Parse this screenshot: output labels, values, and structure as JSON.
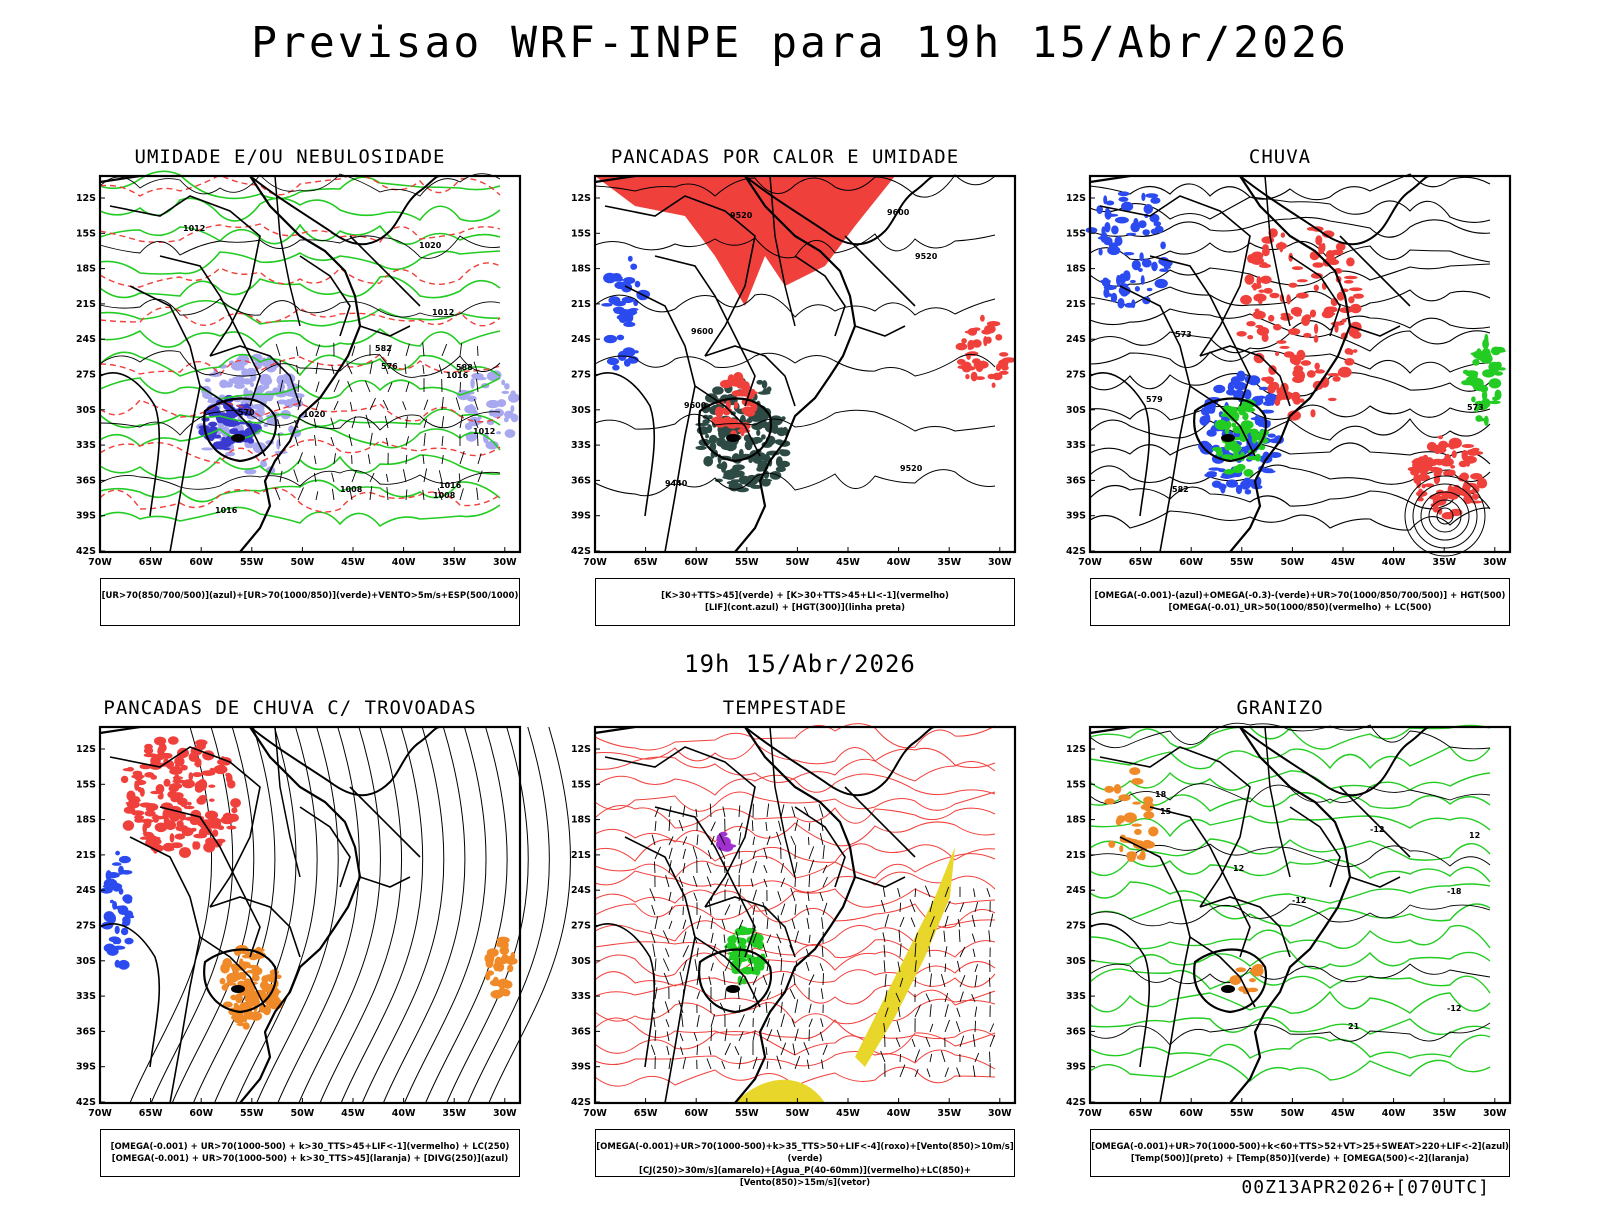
{
  "title": "Previsao WRF-INPE  para 19h 15/Abr/2026",
  "middle_time": "19h 15/Abr/2026",
  "footer": "00Z13APR2026+[070UTC]",
  "axes": {
    "lat_labels": [
      "12S",
      "15S",
      "18S",
      "21S",
      "24S",
      "27S",
      "30S",
      "33S",
      "36S",
      "39S",
      "42S"
    ],
    "lon_labels": [
      "70W",
      "65W",
      "60W",
      "55W",
      "50W",
      "45W",
      "40W",
      "35W",
      "30W"
    ]
  },
  "colors": {
    "red": "#f0403c",
    "green": "#22cc22",
    "blue": "#2b4af0",
    "lightblue": "#a8a8f0",
    "darkblue": "#3a3ad0",
    "darkgreen": "#2d4a44",
    "orange": "#f08a28",
    "yellow": "#e8d62a",
    "purple": "#a030d0"
  },
  "panels": [
    {
      "id": "umidade",
      "title": "UMIDADE E/OU NEBULOSIDADE",
      "legend": [
        "[UR>70(850/700/500)](azul)+[UR>70(1000/850)](verde)+VENTO>5m/s+ESP(500/1000)"
      ],
      "contour_labels": [
        "1008",
        "1008",
        "1012",
        "1012",
        "1016",
        "1016",
        "1020",
        "1020",
        "1012",
        "1016",
        "576",
        "570",
        "582",
        "588"
      ]
    },
    {
      "id": "pancadas_calor",
      "title": "PANCADAS POR CALOR E UMIDADE",
      "legend": [
        "[K>30+TTS>45](verde) + [K>30+TTS>45+LI<-1](vermelho)",
        "[LIF](cont.azul) + [HGT(300)](linha preta)"
      ],
      "contour_labels": [
        "9600",
        "9600",
        "9600",
        "9520",
        "9520",
        "9440",
        "9520"
      ]
    },
    {
      "id": "chuva",
      "title": "CHUVA",
      "legend": [
        "[OMEGA(-0.001)-(azul)+OMEGA(-0.3)-(verde)+UR>70(1000/850/700/500)] + HGT(500)",
        "[OMEGA(-0.01)_UR>50(1000/850)(vermelho) + LC(500)"
      ],
      "contour_labels": [
        "573",
        "579",
        "582",
        "573"
      ]
    },
    {
      "id": "pancadas_trovoadas",
      "title": "PANCADAS DE CHUVA C/ TROVOADAS",
      "legend": [
        "[OMEGA(-0.001) + UR>70(1000-500) + k>30_TTS>45+LIF<-1](vermelho) + LC(250)",
        "[OMEGA(-0.001) + UR>70(1000-500) + k>30_TTS>45](laranja) + [DIVG(250)](azul)"
      ],
      "contour_labels": []
    },
    {
      "id": "tempestade",
      "title": "TEMPESTADE",
      "legend": [
        "[OMEGA(-0.001)+UR>70(1000-500)+k>35_TTS>50+LIF<-4](roxo)+[Vento(850)>10m/s](verde)",
        "[CJ(250)>30m/s](amarelo)+[Agua_P(40-60mm)](vermelho)+LC(850)+[Vento(850)>15m/s](vetor)"
      ],
      "contour_labels": []
    },
    {
      "id": "granizo",
      "title": "GRANIZO",
      "legend": [
        "[OMEGA(-0.001)+UR>70(1000-500)+k<60+TTS>52+VT>25+SWEAT>220+LIF<-2](azul)",
        "[Temp(500)](preto) + [Temp(850)](verde) + [OMEGA(500)<-2](laranja)"
      ],
      "contour_labels": [
        "-12",
        "-12",
        "-12",
        "-18",
        "12",
        "15",
        "18",
        "21",
        "12"
      ]
    }
  ]
}
